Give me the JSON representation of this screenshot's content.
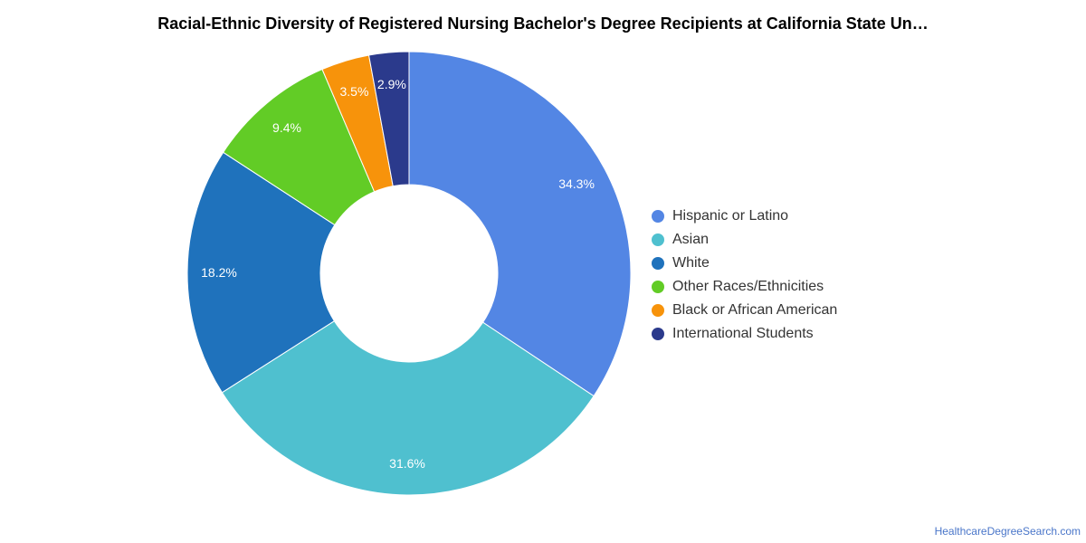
{
  "chart_data": {
    "type": "pie",
    "style": "donut",
    "title": "Racial-Ethnic Diversity of Registered Nursing Bachelor's Degree Recipients at California State Un…",
    "legend_position": "right",
    "slices": [
      {
        "name": "Hispanic or Latino",
        "value": 34.3,
        "label": "34.3%",
        "color": "#5386e4"
      },
      {
        "name": "Asian",
        "value": 31.6,
        "label": "31.6%",
        "color": "#4fc0cf"
      },
      {
        "name": "White",
        "value": 18.2,
        "label": "18.2%",
        "color": "#1f72bc"
      },
      {
        "name": "Other Races/Ethnicities",
        "value": 9.4,
        "label": "9.4%",
        "color": "#62cc26"
      },
      {
        "name": "Black or African American",
        "value": 3.5,
        "label": "3.5%",
        "color": "#f7930b"
      },
      {
        "name": "International Students",
        "value": 2.9,
        "label": "2.9%",
        "color": "#2b3a8c"
      }
    ]
  },
  "credit": "HealthcareDegreeSearch.com"
}
